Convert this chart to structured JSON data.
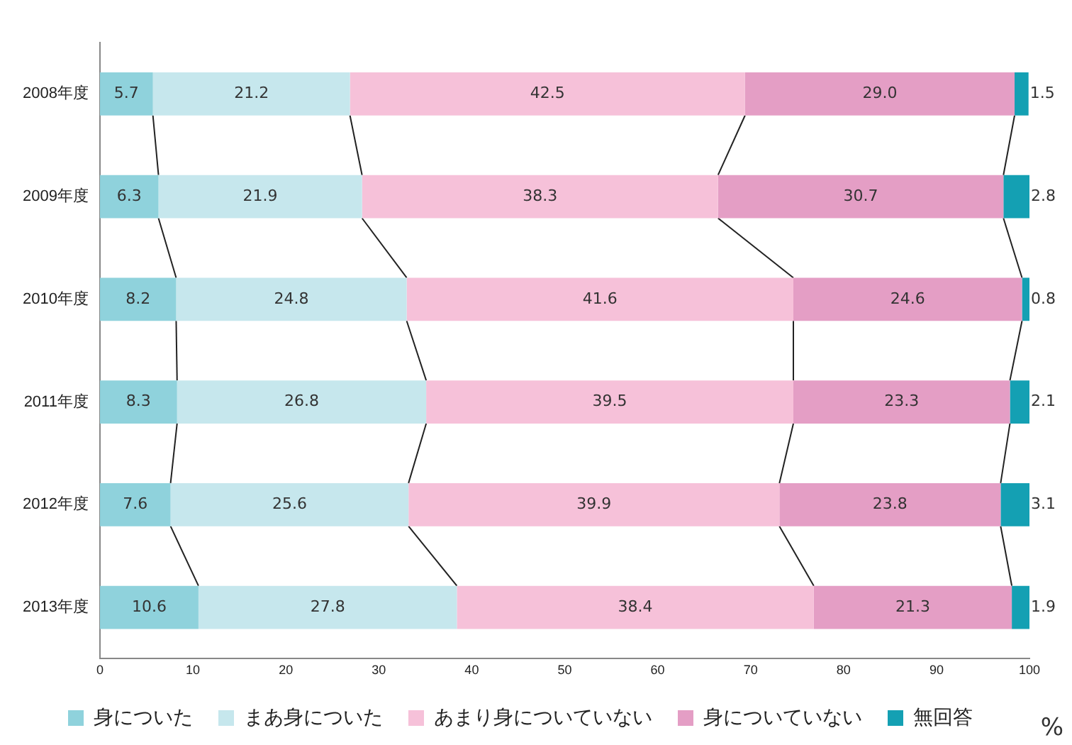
{
  "chart_data": {
    "type": "bar",
    "orientation": "horizontal",
    "stacked": true,
    "categories": [
      "2008年度",
      "2009年度",
      "2010年度",
      "2011年度",
      "2012年度",
      "2013年度"
    ],
    "series": [
      {
        "name": "身についた",
        "color": "#8fd2dc",
        "values": [
          5.7,
          6.3,
          8.2,
          8.3,
          7.6,
          10.6
        ]
      },
      {
        "name": "まあ身についた",
        "color": "#c6e7ed",
        "values": [
          21.2,
          21.9,
          24.8,
          26.8,
          25.6,
          27.8
        ]
      },
      {
        "name": "あまり身についていない",
        "color": "#f6c1d9",
        "values": [
          42.5,
          38.3,
          41.6,
          39.5,
          39.9,
          38.4
        ]
      },
      {
        "name": "身についていない",
        "color": "#e49ec5",
        "values": [
          29.0,
          30.7,
          24.6,
          23.3,
          23.8,
          21.3
        ],
        "value_labels": [
          "29.0",
          "30.7",
          "24.6",
          "23.3",
          "23.8",
          "21.3"
        ]
      },
      {
        "name": "無回答",
        "color": "#14a0b3",
        "values": [
          1.5,
          2.8,
          0.8,
          2.1,
          3.1,
          1.9
        ]
      }
    ],
    "xlim": [
      0,
      100
    ],
    "xticks": [
      0,
      10,
      20,
      30,
      40,
      50,
      60,
      70,
      80,
      90,
      100
    ],
    "xlabel": "%",
    "data_labels": true,
    "grid": false,
    "legend": "bottom"
  }
}
